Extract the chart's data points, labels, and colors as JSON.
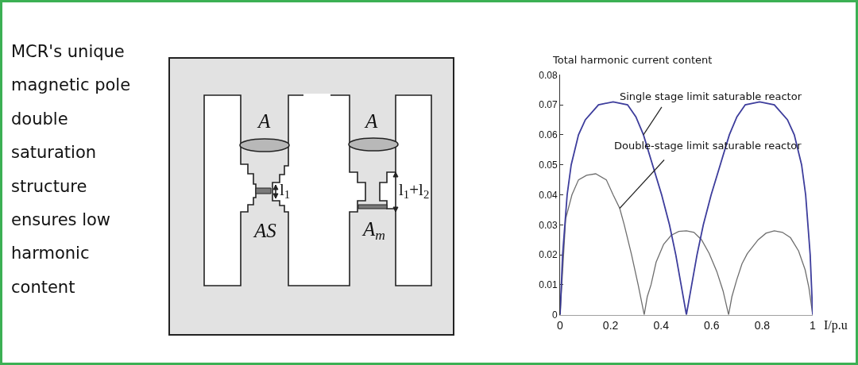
{
  "chart_data": {
    "type": "line",
    "xlabel": "I/p.u",
    "ylabel": "Total harmonic current content",
    "xlim": [
      0,
      1
    ],
    "xticks": [
      0,
      0.2,
      0.4,
      0.6,
      0.8,
      1
    ],
    "ylim": [
      0,
      0.08
    ],
    "yticks": [
      0,
      0.01,
      0.02,
      0.03,
      0.04,
      0.05,
      0.06,
      0.07,
      0.08
    ],
    "series": [
      {
        "color": "#3d3d9c",
        "x": [
          0,
          0.01,
          0.028,
          0.044,
          0.073,
          0.1,
          0.152,
          0.21,
          0.267,
          0.3,
          0.33,
          0.366,
          0.402,
          0.433,
          0.458,
          0.479,
          0.5,
          0.521,
          0.542,
          0.567,
          0.598,
          0.634,
          0.67,
          0.7,
          0.733,
          0.79,
          0.848,
          0.9,
          0.927,
          0.956,
          0.972,
          0.99,
          1
        ],
        "values": [
          0,
          0.02,
          0.04,
          0.05,
          0.06,
          0.065,
          0.07,
          0.071,
          0.07,
          0.066,
          0.06,
          0.05,
          0.04,
          0.03,
          0.02,
          0.01,
          0,
          0.01,
          0.02,
          0.03,
          0.04,
          0.05,
          0.06,
          0.066,
          0.07,
          0.071,
          0.07,
          0.065,
          0.06,
          0.05,
          0.04,
          0.02,
          0
        ]
      },
      {
        "color": "#6e6e6e",
        "x": [
          0,
          0.022,
          0.047,
          0.073,
          0.105,
          0.141,
          0.183,
          0.21,
          0.236,
          0.254,
          0.283,
          0.309,
          0.333,
          0.345,
          0.36,
          0.38,
          0.41,
          0.44,
          0.47,
          0.5,
          0.53,
          0.56,
          0.59,
          0.62,
          0.645,
          0.667,
          0.68,
          0.699,
          0.72,
          0.741,
          0.784,
          0.815,
          0.848,
          0.88,
          0.912,
          0.944,
          0.97,
          0.985,
          1
        ],
        "values": [
          0,
          0.032,
          0.04,
          0.045,
          0.0465,
          0.047,
          0.045,
          0.04,
          0.0355,
          0.03,
          0.02,
          0.01,
          0,
          0.006,
          0.01,
          0.0175,
          0.0235,
          0.0265,
          0.0278,
          0.028,
          0.0275,
          0.025,
          0.0205,
          0.0145,
          0.008,
          0,
          0.006,
          0.0116,
          0.017,
          0.0204,
          0.025,
          0.0272,
          0.028,
          0.0275,
          0.0257,
          0.0213,
          0.015,
          0.009,
          0
        ]
      }
    ],
    "annotations": [
      "MCR's unique magnetic pole double saturation structure ensures low harmonic content",
      "A",
      "A",
      "AS",
      "A$_{m}$",
      "l$_{1}$",
      "l$_{1}$+l$_{2}$",
      {
        "text": "Single stage limit saturable reactor",
        "x": 0.33,
        "y": 0.06
      },
      {
        "text": "Double-stage limit saturable reactor",
        "x": 0.236,
        "y": 0.0355
      }
    ]
  }
}
